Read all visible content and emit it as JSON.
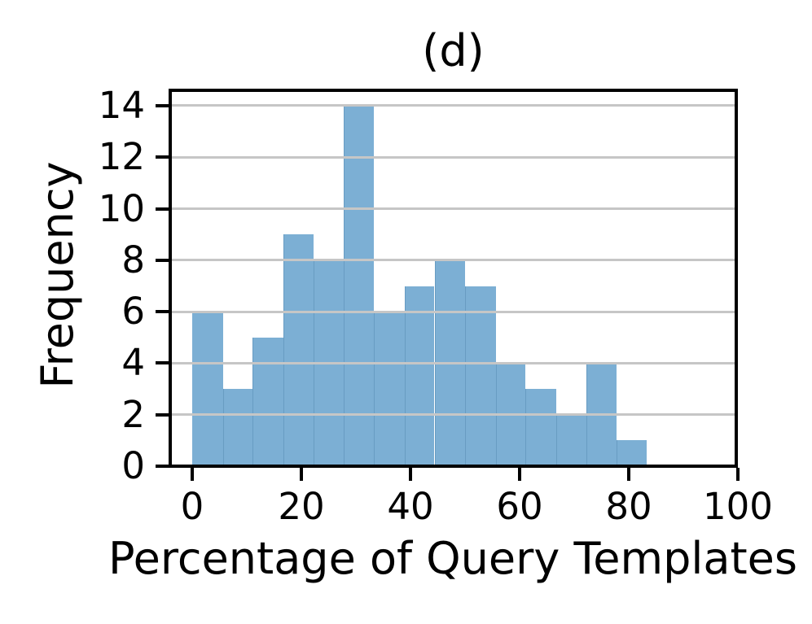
{
  "figure": {
    "panel_label": "(d)"
  },
  "chart_data": {
    "type": "bar",
    "subtype": "histogram",
    "title": "(d)",
    "xlabel": "Percentage of Query Templates",
    "ylabel": "Frequency",
    "bin_edges": [
      0,
      5.6,
      11.1,
      16.7,
      22.2,
      27.8,
      33.3,
      38.9,
      44.4,
      50.0,
      55.6,
      61.1,
      66.7,
      72.2,
      77.8,
      83.3
    ],
    "frequencies": [
      6,
      3,
      5,
      9,
      8,
      14,
      6,
      7,
      8,
      7,
      4,
      3,
      2,
      4,
      1
    ],
    "xticks": [
      0,
      20,
      40,
      60,
      80,
      100
    ],
    "yticks": [
      0,
      2,
      4,
      6,
      8,
      10,
      12,
      14
    ],
    "xlim": [
      -4.3,
      100
    ],
    "ylim": [
      0,
      14.67
    ],
    "grid": "horizontal-on-top",
    "legend": "none",
    "colors": {
      "bar": "#7CAFD4",
      "grid": "#C6C6C6",
      "spine": "#000000",
      "text": "#000000",
      "background": "#FFFFFF"
    }
  }
}
